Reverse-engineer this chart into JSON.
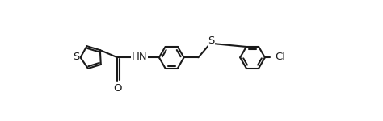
{
  "background_color": "#ffffff",
  "line_color": "#1a1a1a",
  "line_width": 1.5,
  "figsize": [
    4.74,
    1.5
  ],
  "dpi": 100,
  "label_S_thiophene": "S",
  "label_O": "O",
  "label_HN": "HN",
  "label_S_sulfanyl": "S",
  "label_Cl": "Cl",
  "fontsize": 9.0
}
